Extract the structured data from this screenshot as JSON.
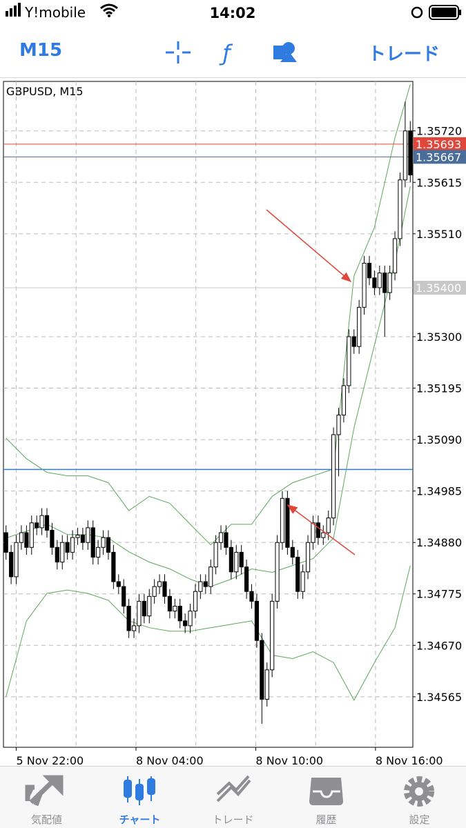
{
  "status_bar": {
    "carrier": "Y!mobile",
    "time": "14:02"
  },
  "toolbar": {
    "timeframe": "M15",
    "trade": "トレード"
  },
  "tabs": [
    {
      "label": "気配値"
    },
    {
      "label": "チャート"
    },
    {
      "label": "トレード"
    },
    {
      "label": "履歴"
    },
    {
      "label": "設定"
    }
  ],
  "chart_data": {
    "type": "candlestick",
    "title": "GBPUSD, M15",
    "ylim": [
      1.34462,
      1.35821
    ],
    "yticks": [
      {
        "value": 1.3572,
        "label": "1.35720"
      },
      1.35615,
      {
        "value": 1.3551,
        "label": "1.35510"
      },
      {
        "value": 1.353,
        "label": "1.35300"
      },
      1.35195,
      {
        "value": 1.3509,
        "label": "1.35090"
      },
      1.34985,
      {
        "value": 1.3488,
        "label": "1.34880"
      },
      1.34775,
      {
        "value": 1.3467,
        "label": "1.34670"
      },
      1.34565
    ],
    "xticks": [
      {
        "value": 2,
        "label": "5 Nov 22:00"
      },
      {
        "value": 25.4,
        "label": "8 Nov 04:00"
      },
      {
        "value": 48.8,
        "label": "8 Nov 10:00"
      },
      {
        "value": 72.2,
        "label": "8 Nov 16:00"
      }
    ],
    "grid": true,
    "open": [
      1.349,
      1.3486,
      1.3481,
      1.3488,
      1.349,
      1.3487,
      1.3492,
      1.3491,
      1.34935,
      1.34905,
      1.3487,
      1.3484,
      1.3488,
      1.3486,
      1.3489,
      1.34895,
      1.3488,
      1.3491,
      1.3485,
      1.3487,
      1.3489,
      1.3486,
      1.348,
      1.3479,
      1.3475,
      1.347,
      1.3471,
      1.3476,
      1.3473,
      1.3477,
      1.3479,
      1.348,
      1.3477,
      1.3474,
      1.3475,
      1.3472,
      1.3471,
      1.3474,
      1.3478,
      1.348,
      1.3479,
      1.3483,
      1.3488,
      1.349,
      1.3487,
      1.3482,
      1.3486,
      1.3483,
      1.3478,
      1.3476,
      1.3468,
      1.3456,
      1.3462,
      1.3476,
      1.3488,
      1.3497,
      1.3487,
      1.3485,
      1.3478,
      1.3482,
      1.3488,
      1.3492,
      1.3489,
      1.349,
      1.3493,
      1.351,
      1.3514,
      1.352,
      1.353,
      1.3528,
      1.3536,
      1.3545,
      1.3542,
      1.354,
      1.3543,
      1.3539,
      1.3543,
      1.355,
      1.3562,
      1.3572
    ],
    "high": [
      1.34915,
      1.34875,
      1.34895,
      1.34915,
      1.34915,
      1.34935,
      1.34935,
      1.3495,
      1.3495,
      1.3492,
      1.34885,
      1.34895,
      1.34895,
      1.34905,
      1.3491,
      1.3491,
      1.34925,
      1.34925,
      1.34885,
      1.34905,
      1.34905,
      1.34875,
      1.34815,
      1.34805,
      1.34765,
      1.34725,
      1.34775,
      1.34775,
      1.34785,
      1.34805,
      1.34815,
      1.34815,
      1.34785,
      1.34765,
      1.34765,
      1.34735,
      1.34755,
      1.34795,
      1.34815,
      1.34815,
      1.34845,
      1.34895,
      1.34915,
      1.34915,
      1.34885,
      1.34875,
      1.34875,
      1.34845,
      1.34795,
      1.34775,
      1.34695,
      1.34635,
      1.34775,
      1.34895,
      1.34985,
      1.34985,
      1.34885,
      1.34865,
      1.34835,
      1.34895,
      1.34935,
      1.34935,
      1.34915,
      1.34945,
      1.35115,
      1.35155,
      1.35215,
      1.35315,
      1.35315,
      1.35375,
      1.35465,
      1.35465,
      1.35435,
      1.35445,
      1.35445,
      1.35445,
      1.35515,
      1.35635,
      1.3578,
      1.3574
    ],
    "low": [
      1.34845,
      1.34795,
      1.34795,
      1.34865,
      1.34855,
      1.34855,
      1.34895,
      1.34895,
      1.3489,
      1.34855,
      1.34825,
      1.34825,
      1.34845,
      1.34845,
      1.34875,
      1.34865,
      1.34865,
      1.34835,
      1.34835,
      1.34855,
      1.34845,
      1.34785,
      1.34775,
      1.34735,
      1.34685,
      1.34685,
      1.34695,
      1.34715,
      1.34715,
      1.34755,
      1.34775,
      1.34755,
      1.34725,
      1.34725,
      1.34705,
      1.34695,
      1.34695,
      1.34725,
      1.34765,
      1.34775,
      1.34775,
      1.34815,
      1.34865,
      1.34855,
      1.34805,
      1.34805,
      1.34815,
      1.34765,
      1.34745,
      1.34665,
      1.3451,
      1.34545,
      1.34605,
      1.34745,
      1.34865,
      1.34855,
      1.34835,
      1.34765,
      1.34765,
      1.34805,
      1.34865,
      1.34875,
      1.34875,
      1.34885,
      1.34915,
      1.35015,
      1.35125,
      1.35185,
      1.35265,
      1.35265,
      1.35345,
      1.35405,
      1.35385,
      1.35385,
      1.353,
      1.35375,
      1.35415,
      1.35485,
      1.35605,
      1.35615
    ],
    "close": [
      1.3486,
      1.3481,
      1.3488,
      1.349,
      1.3487,
      1.3492,
      1.3491,
      1.34935,
      1.34905,
      1.3487,
      1.3484,
      1.3488,
      1.3486,
      1.3489,
      1.34895,
      1.3488,
      1.3491,
      1.3485,
      1.3487,
      1.3489,
      1.3486,
      1.348,
      1.3479,
      1.3475,
      1.347,
      1.3471,
      1.3476,
      1.3473,
      1.3477,
      1.3479,
      1.348,
      1.3477,
      1.3474,
      1.3475,
      1.3472,
      1.3471,
      1.3474,
      1.3478,
      1.348,
      1.3479,
      1.3483,
      1.3488,
      1.349,
      1.3487,
      1.3482,
      1.3486,
      1.3483,
      1.3478,
      1.3476,
      1.3468,
      1.3456,
      1.3462,
      1.3476,
      1.3488,
      1.3497,
      1.3487,
      1.3485,
      1.3478,
      1.3482,
      1.3488,
      1.3492,
      1.3489,
      1.349,
      1.3493,
      1.351,
      1.3514,
      1.352,
      1.353,
      1.3528,
      1.3536,
      1.3545,
      1.3542,
      1.354,
      1.3543,
      1.3539,
      1.3543,
      1.355,
      1.3562,
      1.3572,
      1.3563
    ],
    "bands": {
      "color": "#5aa85a",
      "x": [
        0,
        4,
        8,
        12,
        16,
        20,
        24,
        28,
        32,
        36,
        40,
        44,
        48,
        52,
        56,
        60,
        64,
        68,
        72,
        76,
        79
      ],
      "upper": [
        1.35093,
        1.35051,
        1.35023,
        1.35016,
        1.35016,
        1.35002,
        1.34945,
        1.34974,
        1.3496,
        1.34917,
        1.34875,
        1.34917,
        1.34917,
        1.34974,
        1.35002,
        1.35016,
        1.3503,
        1.35424,
        1.35523,
        1.35706,
        1.35815
      ],
      "middle": [
        1.34889,
        1.34903,
        1.34917,
        1.34896,
        1.34896,
        1.34889,
        1.34861,
        1.3484,
        1.34826,
        1.34805,
        1.3479,
        1.34805,
        1.34826,
        1.34819,
        1.34833,
        1.34847,
        1.34889,
        1.35114,
        1.35283,
        1.35452,
        1.35607
      ],
      "lower": [
        1.34565,
        1.3472,
        1.34776,
        1.34783,
        1.34776,
        1.34762,
        1.3472,
        1.34706,
        1.34699,
        1.34699,
        1.34706,
        1.34713,
        1.3472,
        1.3465,
        1.34643,
        1.34657,
        1.34635,
        1.34558,
        1.34635,
        1.34706,
        1.34833
      ]
    },
    "price_lines": [
      {
        "value": 1.35693,
        "color": "#e0463a"
      },
      {
        "value": 1.35667,
        "color": "#4a6d9a"
      },
      {
        "value": 1.354,
        "label": "1.35400",
        "color": "#c8c8c8"
      }
    ],
    "hline": {
      "value": 1.35029,
      "color": "#2f7be0"
    }
  }
}
